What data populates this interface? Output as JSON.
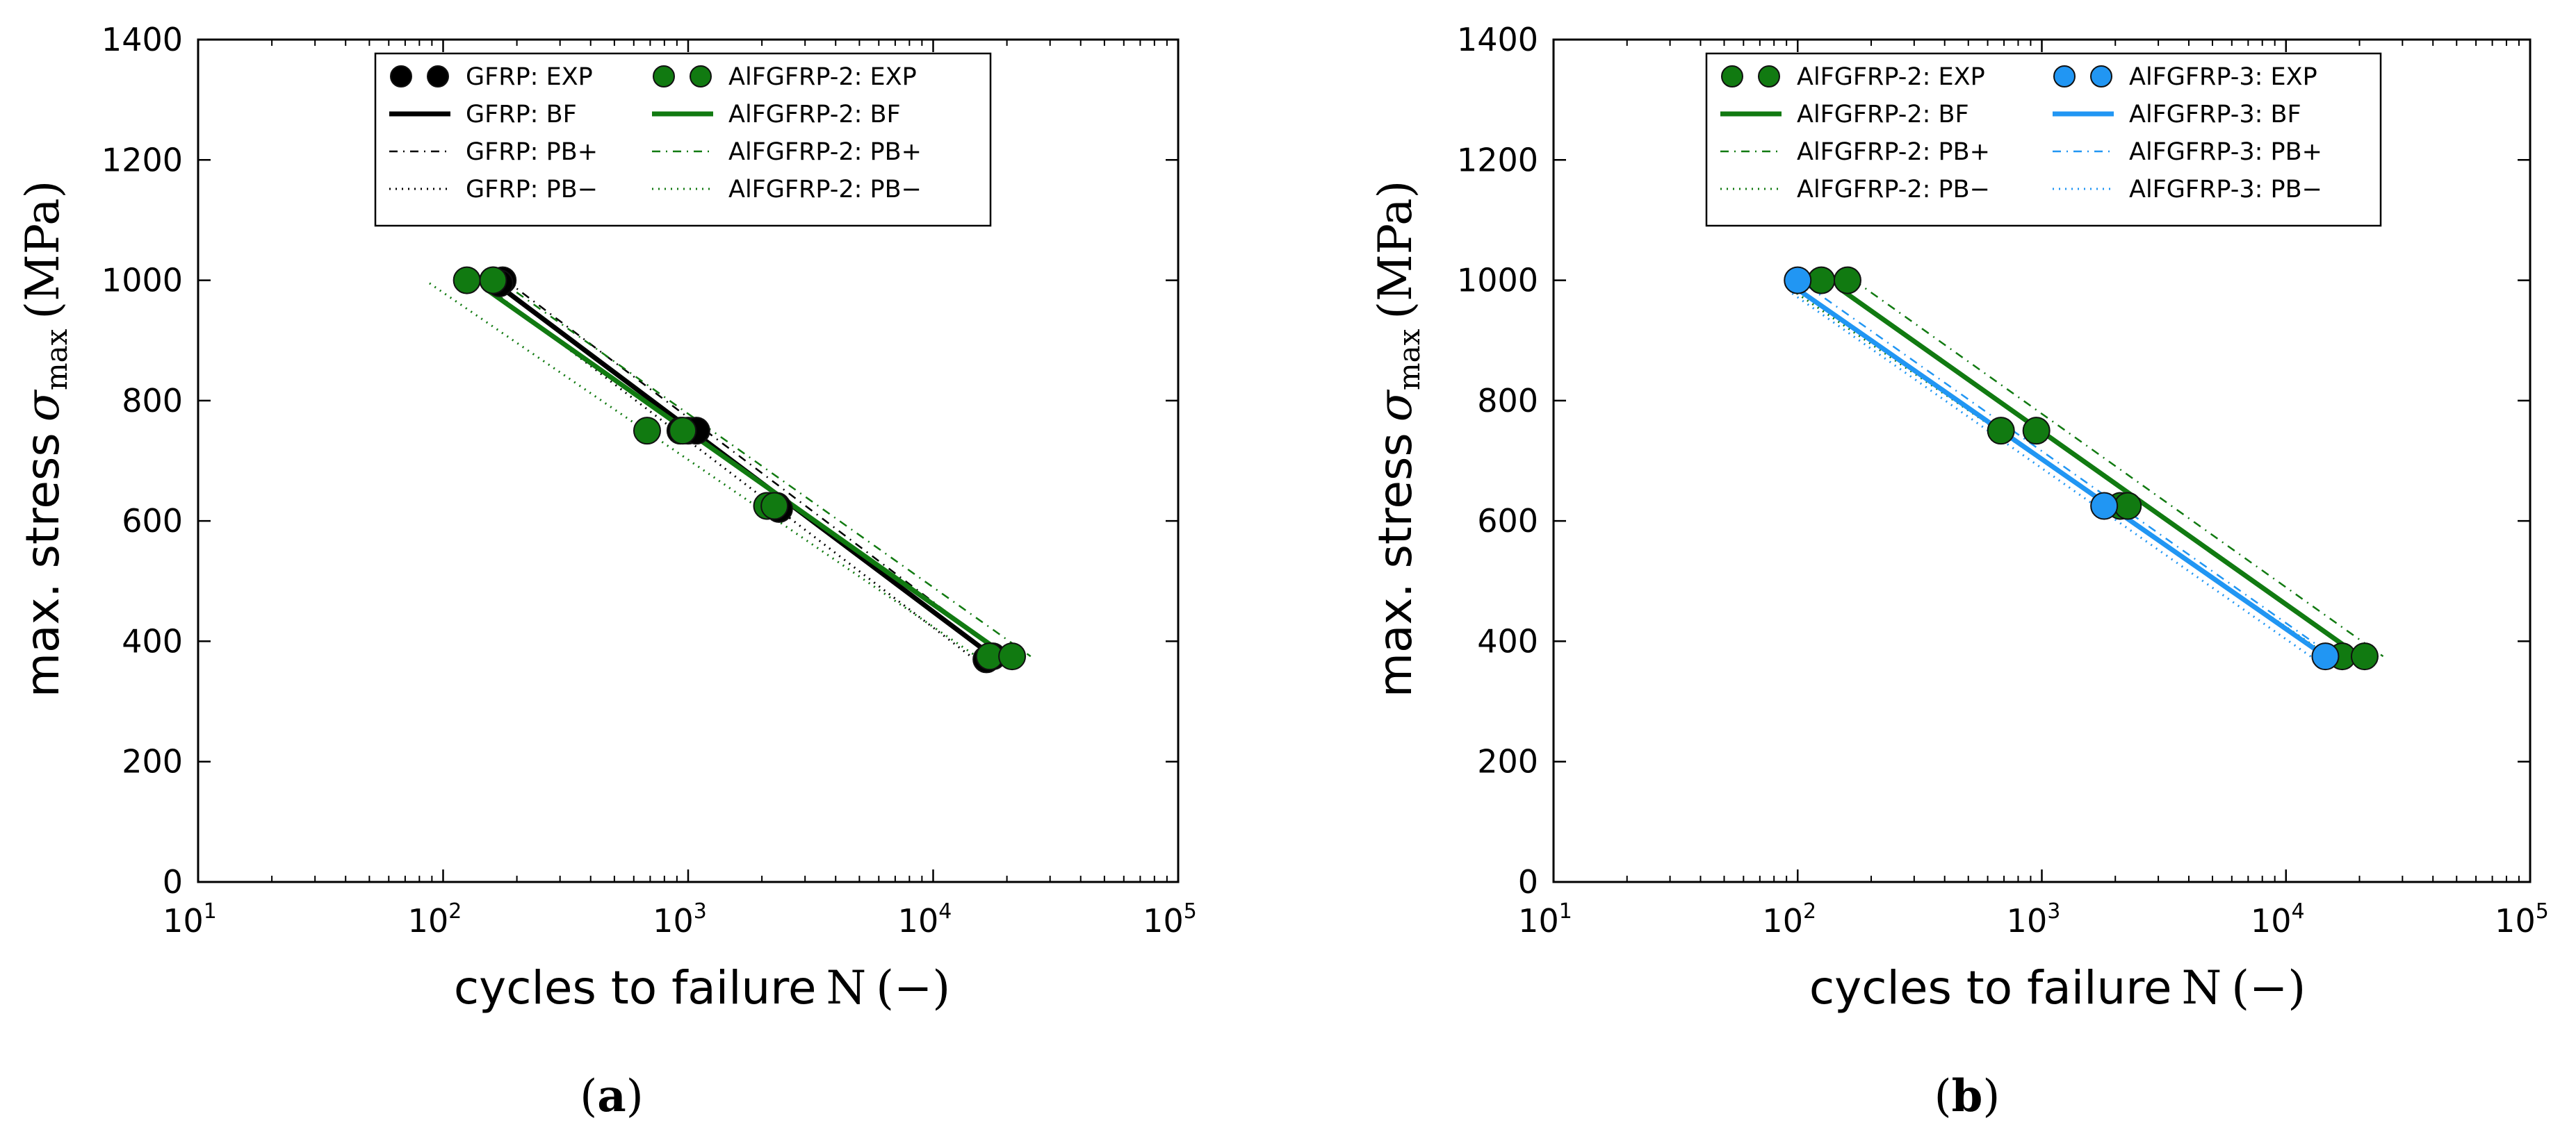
{
  "colors": {
    "gfrp": "#000000",
    "alfgfrp2": "#117a11",
    "alfgfrp3": "#2196f3",
    "marker_edge": "#111111",
    "axes": "#000000"
  },
  "chart_data": [
    {
      "type": "scatter",
      "panel_label": "a",
      "title": "",
      "xlabel": "cycles to failure",
      "xlabel_math": "N",
      "xlabel_unit": "−",
      "ylabel": "max. stress",
      "ylabel_math": "σ",
      "ylabel_math_sub": "max",
      "ylabel_unit": "MPa",
      "xscale": "log",
      "xlim": [
        10,
        100000
      ],
      "ylim": [
        0,
        1400
      ],
      "xticks": [
        10,
        100,
        1000,
        10000,
        100000
      ],
      "xtick_labels": [
        {
          "base": "10",
          "exp": "1"
        },
        {
          "base": "10",
          "exp": "2"
        },
        {
          "base": "10",
          "exp": "3"
        },
        {
          "base": "10",
          "exp": "4"
        },
        {
          "base": "10",
          "exp": "5"
        }
      ],
      "yticks": [
        0,
        200,
        400,
        600,
        800,
        1000,
        1200,
        1400
      ],
      "ytick_labels": [
        "0",
        "200",
        "400",
        "600",
        "800",
        "1000",
        "1200",
        "1400"
      ],
      "grid": false,
      "legend_position": "top-center",
      "legend_columns": 2,
      "series": [
        {
          "name": "GFRP",
          "color": "#000000",
          "legend": {
            "exp": "GFRP: EXP",
            "bf": "GFRP: BF",
            "pbp": "GFRP: PB+",
            "pbm": "GFRP: PB−"
          },
          "points": [
            [
              160,
              1000
            ],
            [
              175,
              1000
            ],
            [
              170,
              995
            ],
            [
              930,
              750
            ],
            [
              1000,
              750
            ],
            [
              1080,
              750
            ],
            [
              2100,
              625
            ],
            [
              2300,
              625
            ],
            [
              2350,
              620
            ],
            [
              17000,
              375
            ],
            [
              17500,
              375
            ],
            [
              16500,
              370
            ]
          ],
          "bf": [
            [
              170,
              990
            ],
            [
              17500,
              375
            ]
          ],
          "pb_plus": [
            [
              180,
              1000
            ],
            [
              19000,
              380
            ]
          ],
          "pb_minus": [
            [
              150,
              990
            ],
            [
              15000,
              368
            ]
          ]
        },
        {
          "name": "AlFGFRP-2",
          "color": "#117a11",
          "legend": {
            "exp": "AlFGFRP-2: EXP",
            "bf": "AlFGFRP-2: BF",
            "pbp": "AlFGFRP-2: PB+",
            "pbm": "AlFGFRP-2: PB−"
          },
          "points": [
            [
              125,
              1000
            ],
            [
              160,
              1000
            ],
            [
              680,
              750
            ],
            [
              950,
              750
            ],
            [
              2100,
              625
            ],
            [
              2250,
              625
            ],
            [
              17000,
              375
            ],
            [
              21000,
              375
            ]
          ],
          "bf": [
            [
              150,
              985
            ],
            [
              20000,
              375
            ]
          ],
          "pb_plus": [
            [
              170,
              1000
            ],
            [
              25000,
              375
            ]
          ],
          "pb_minus": [
            [
              88,
              995
            ],
            [
              17000,
              360
            ]
          ]
        }
      ]
    },
    {
      "type": "scatter",
      "panel_label": "b",
      "title": "",
      "xlabel": "cycles to failure",
      "xlabel_math": "N",
      "xlabel_unit": "−",
      "ylabel": "max. stress",
      "ylabel_math": "σ",
      "ylabel_math_sub": "max",
      "ylabel_unit": "MPa",
      "xscale": "log",
      "xlim": [
        10,
        100000
      ],
      "ylim": [
        0,
        1400
      ],
      "xticks": [
        10,
        100,
        1000,
        10000,
        100000
      ],
      "xtick_labels": [
        {
          "base": "10",
          "exp": "1"
        },
        {
          "base": "10",
          "exp": "2"
        },
        {
          "base": "10",
          "exp": "3"
        },
        {
          "base": "10",
          "exp": "4"
        },
        {
          "base": "10",
          "exp": "5"
        }
      ],
      "yticks": [
        0,
        200,
        400,
        600,
        800,
        1000,
        1200,
        1400
      ],
      "ytick_labels": [
        "0",
        "200",
        "400",
        "600",
        "800",
        "1000",
        "1200",
        "1400"
      ],
      "grid": false,
      "legend_position": "top-center",
      "legend_columns": 2,
      "series": [
        {
          "name": "AlFGFRP-2",
          "color": "#117a11",
          "legend": {
            "exp": "AlFGFRP-2: EXP",
            "bf": "AlFGFRP-2: BF",
            "pbp": "AlFGFRP-2: PB+",
            "pbm": "AlFGFRP-2: PB−"
          },
          "points": [
            [
              125,
              1000
            ],
            [
              160,
              1000
            ],
            [
              680,
              750
            ],
            [
              950,
              750
            ],
            [
              2100,
              625
            ],
            [
              2250,
              625
            ],
            [
              17000,
              375
            ],
            [
              21000,
              375
            ]
          ],
          "bf": [
            [
              150,
              985
            ],
            [
              20000,
              375
            ]
          ],
          "pb_plus": [
            [
              170,
              1000
            ],
            [
              25000,
              375
            ]
          ],
          "pb_minus": [
            [
              90,
              990
            ],
            [
              17000,
              360
            ]
          ]
        },
        {
          "name": "AlFGFRP-3",
          "color": "#2196f3",
          "legend": {
            "exp": "AlFGFRP-3: EXP",
            "bf": "AlFGFRP-3: BF",
            "pbp": "AlFGFRP-3: PB+",
            "pbm": "AlFGFRP-3: PB−"
          },
          "points": [
            [
              100,
              1000
            ],
            [
              1800,
              625
            ],
            [
              14500,
              375
            ]
          ],
          "bf": [
            [
              100,
              985
            ],
            [
              14500,
              375
            ]
          ],
          "pb_plus": [
            [
              110,
              990
            ],
            [
              16000,
              372
            ]
          ],
          "pb_minus": [
            [
              95,
              978
            ],
            [
              14000,
              362
            ]
          ]
        }
      ]
    }
  ]
}
